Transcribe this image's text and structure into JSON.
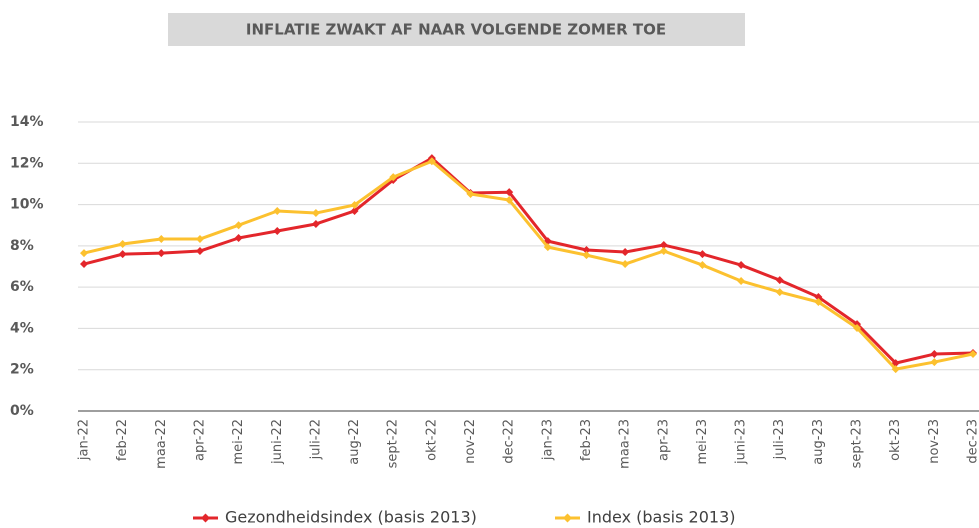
{
  "chart_data": {
    "type": "line",
    "title": "INFLATIE ZWAKT AF NAAR VOLGENDE ZOMER TOE",
    "categories": [
      "jan-22",
      "feb-22",
      "maa-22",
      "apr-22",
      "mei-22",
      "juni-22",
      "juli-22",
      "aug-22",
      "sept-22",
      "okt-22",
      "nov-22",
      "dec-22",
      "jan-23",
      "feb-23",
      "maa-23",
      "apr-23",
      "mei-23",
      "juni-23",
      "juli-23",
      "aug-23",
      "sept-23",
      "okt-23",
      "nov-23",
      "dec-23"
    ],
    "series": [
      {
        "name": "Gezondheidsindex (basis 2013)",
        "color": "#e3262b",
        "values": [
          7.12,
          7.6,
          7.65,
          7.75,
          8.38,
          8.72,
          9.06,
          9.69,
          11.19,
          12.25,
          10.56,
          10.6,
          8.23,
          7.8,
          7.7,
          8.04,
          7.6,
          7.07,
          6.34,
          5.52,
          4.21,
          2.32,
          2.76,
          2.81
        ]
      },
      {
        "name": "Index (basis 2013)",
        "color": "#fcc12f",
        "values": [
          7.65,
          8.09,
          8.33,
          8.33,
          9.0,
          9.69,
          9.59,
          9.98,
          11.33,
          12.1,
          10.51,
          10.22,
          7.94,
          7.55,
          7.12,
          7.75,
          7.07,
          6.3,
          5.76,
          5.28,
          4.02,
          2.03,
          2.37,
          2.76
        ]
      }
    ],
    "ylim": [
      0,
      14
    ],
    "yticks": [
      {
        "value": 0,
        "label": "0%"
      },
      {
        "value": 2,
        "label": "2%"
      },
      {
        "value": 4,
        "label": "4%"
      },
      {
        "value": 6,
        "label": "6%"
      },
      {
        "value": 8,
        "label": "8%"
      },
      {
        "value": 10,
        "label": "10%"
      },
      {
        "value": 12,
        "label": "12%"
      },
      {
        "value": 14,
        "label": "14%"
      }
    ],
    "grid": true,
    "legend": "bottom"
  }
}
